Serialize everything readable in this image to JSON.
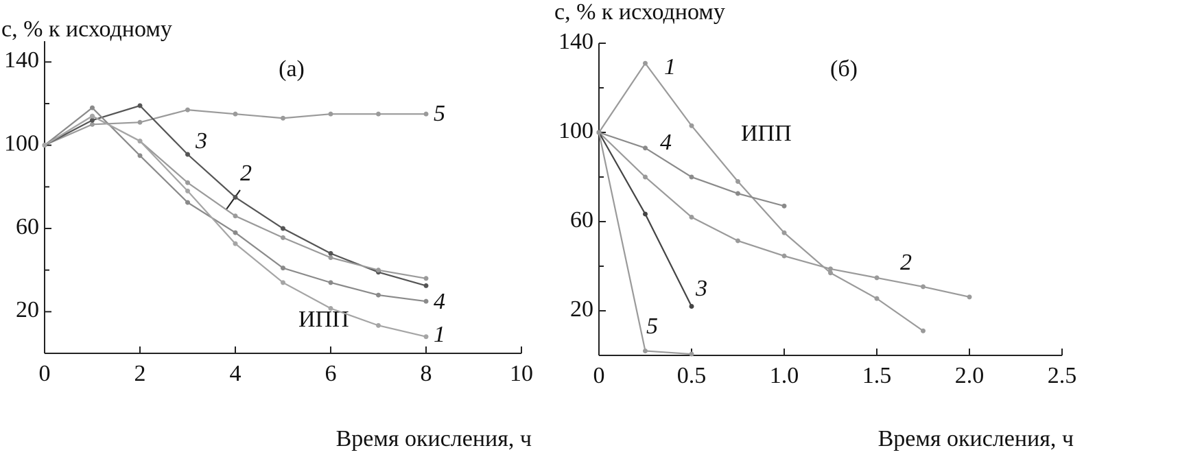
{
  "chart_data": [
    {
      "type": "line",
      "panel_label": "(а)",
      "y_label": "c, % к исходному",
      "x_label": "Время окисления, ч",
      "annotation": "ИПП",
      "x": [
        0,
        1,
        2,
        3,
        4,
        5,
        6,
        7,
        8
      ],
      "xlim": [
        0,
        10
      ],
      "xticks": [
        0,
        2,
        4,
        6,
        8,
        10
      ],
      "ylim": [
        0,
        150
      ],
      "yticks": [
        20,
        60,
        100,
        140
      ],
      "yminorticks": [
        40,
        80,
        120
      ],
      "series": [
        {
          "name": "5",
          "color": "#9a9a9a",
          "values": [
            100,
            110,
            111,
            117,
            115,
            113,
            115,
            115,
            115
          ]
        },
        {
          "name": "3",
          "color": "#555555",
          "values": [
            100,
            112,
            119,
            95.6,
            75,
            60,
            48,
            39,
            32.5
          ]
        },
        {
          "name": "2",
          "color": "#9a9a9a",
          "values": [
            100,
            114,
            102,
            82,
            66,
            55.6,
            46,
            40,
            36
          ]
        },
        {
          "name": "4",
          "color": "#8a8a8a",
          "values": [
            100,
            118,
            95,
            72.5,
            58,
            41,
            34,
            28,
            25
          ]
        },
        {
          "name": "1",
          "color": "#a5a5a5",
          "values": [
            100,
            114,
            102,
            78,
            52.7,
            34,
            21.6,
            13.4,
            8
          ]
        }
      ]
    },
    {
      "type": "line",
      "panel_label": "(б)",
      "y_label": "c, % к исходному",
      "x_label": "Время окисления, ч",
      "annotation": "ИПП",
      "xlim": [
        0,
        2.5
      ],
      "xticks": [
        0,
        0.5,
        {
          "value": 1,
          "label": "1.0"
        },
        1.5,
        {
          "value": 2,
          "label": "2.0"
        },
        2.5
      ],
      "ylim": [
        0,
        140
      ],
      "yticks": [
        20,
        60,
        100,
        140
      ],
      "yminorticks": [
        40,
        80,
        120
      ],
      "series": [
        {
          "name": "1",
          "color": "#9a9a9a",
          "x": [
            0,
            0.25,
            0.5,
            0.75,
            1,
            1.25,
            1.5,
            1.75
          ],
          "values": [
            100,
            131,
            103,
            78,
            55,
            37,
            25.5,
            11
          ]
        },
        {
          "name": "4",
          "color": "#8a8a8a",
          "x": [
            0,
            0.25,
            0.5,
            0.75,
            1
          ],
          "values": [
            100,
            93,
            80,
            72.6,
            67
          ]
        },
        {
          "name": "2",
          "color": "#9a9a9a",
          "x": [
            0,
            0.25,
            0.5,
            0.75,
            1,
            1.25,
            1.5,
            1.75,
            2
          ],
          "values": [
            100,
            80,
            62,
            51.4,
            44.6,
            38.8,
            34.8,
            30.8,
            26.2
          ]
        },
        {
          "name": "3",
          "color": "#444444",
          "x": [
            0,
            0.25,
            0.5
          ],
          "values": [
            100,
            63.4,
            22
          ]
        },
        {
          "name": "5",
          "color": "#9a9a9a",
          "x": [
            0,
            0.25,
            0.5
          ],
          "values": [
            100,
            2,
            0.6
          ]
        }
      ]
    }
  ]
}
